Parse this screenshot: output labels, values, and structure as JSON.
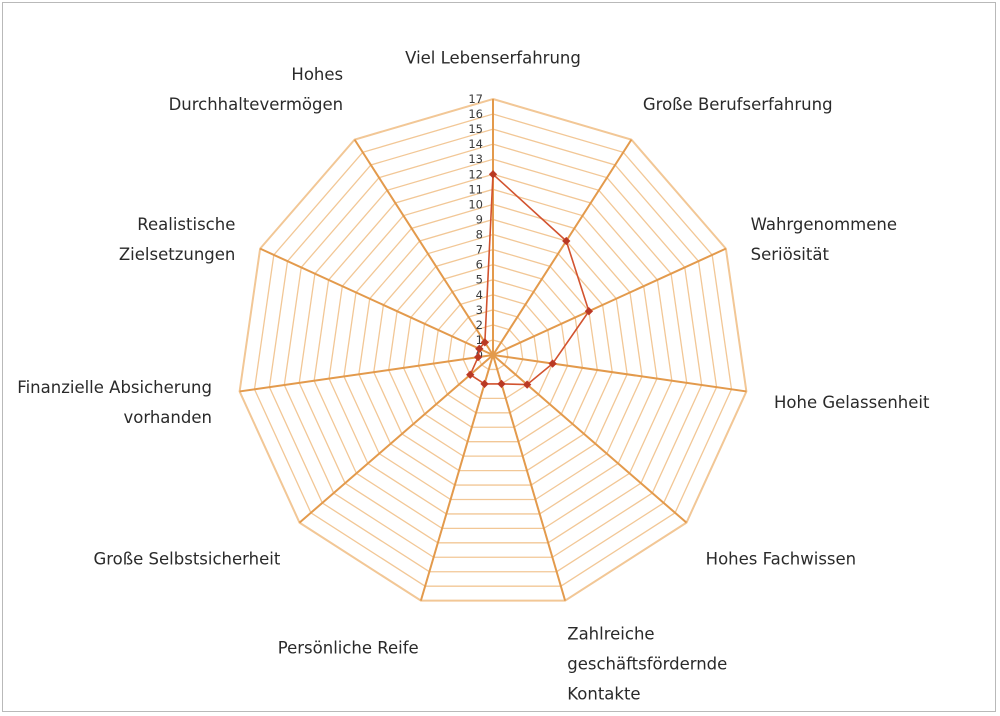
{
  "chart_data": {
    "type": "radar",
    "title": "",
    "categories": [
      [
        "Viel Lebenserfahrung"
      ],
      [
        "Große Berufserfahrung"
      ],
      [
        "Wahrgenommene",
        "Seriösität"
      ],
      [
        "Hohe Gelassenheit"
      ],
      [
        "Hohes Fachwissen"
      ],
      [
        "Zahlreiche",
        "geschäftsfördernde",
        "Kontakte"
      ],
      [
        "Persönliche Reife"
      ],
      [
        "Große Selbstsicherheit"
      ],
      [
        "Finanzielle Absicherung",
        "vorhanden"
      ],
      [
        "Realistische",
        "Zielsetzungen"
      ],
      [
        "Hohes",
        "Durchhaltevermögen"
      ]
    ],
    "series": [
      {
        "values": [
          12,
          9,
          7,
          4,
          3,
          2,
          2,
          2,
          1,
          1,
          1
        ]
      }
    ],
    "rlim": [
      0,
      17
    ],
    "ticks": [
      0,
      1,
      2,
      3,
      4,
      5,
      6,
      7,
      8,
      9,
      10,
      11,
      12,
      13,
      14,
      15,
      16,
      17
    ],
    "grid": true,
    "colors": {
      "grid": "#f2c796",
      "spokes": "#e39a4c",
      "series_line": "#d2532f",
      "marker_fill": "#b83a22",
      "marker_stroke": "#c0392b"
    }
  }
}
